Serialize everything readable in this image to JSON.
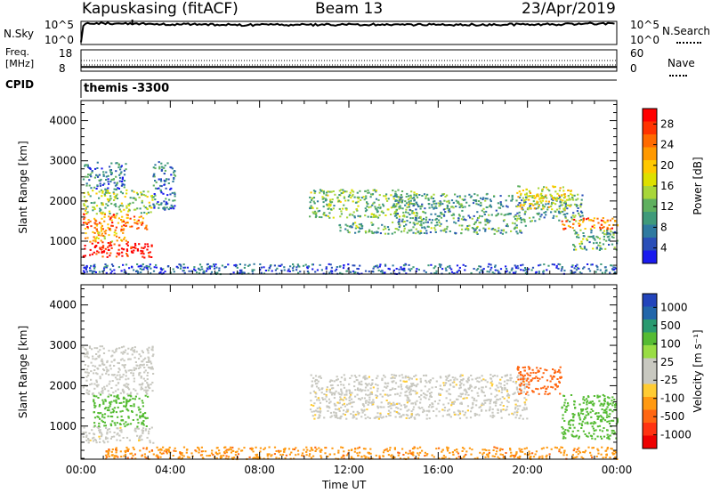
{
  "header": {
    "station": "Kapuskasing (fitACF)",
    "beam": "Beam 13",
    "date": "23/Apr/2019"
  },
  "panels": {
    "noise": {
      "left_label": "N.Sky",
      "right_label": "N.Search",
      "left_ticks": [
        "10^5",
        "10^0"
      ],
      "right_ticks": [
        "10^5",
        "10^0"
      ]
    },
    "freq": {
      "left_label_line1": "Freq.",
      "left_label_line2": "[MHz]",
      "right_label": "Nave",
      "left_ticks": [
        "18",
        "8"
      ],
      "right_ticks": [
        "60",
        "0"
      ]
    },
    "cpid": {
      "label": "CPID",
      "value": "themis -3300"
    }
  },
  "x_axis": {
    "label": "Time UT",
    "ticks": [
      "00:00",
      "04:00",
      "08:00",
      "12:00",
      "16:00",
      "20:00",
      "00:00"
    ],
    "range_hours": [
      0,
      24
    ]
  },
  "colorbars": {
    "power": {
      "label": "Power [dB]",
      "ticks": [
        "28",
        "24",
        "20",
        "16",
        "12",
        "8",
        "4"
      ],
      "colors": [
        "#ff0000",
        "#ff3300",
        "#ff6a00",
        "#ff9900",
        "#ffc800",
        "#dde000",
        "#a8d63a",
        "#5fb05f",
        "#3f9a7a",
        "#2f7aa0",
        "#2a4fb8",
        "#1a1aee"
      ]
    },
    "velocity": {
      "label": "Velocity [m s⁻¹]",
      "ticks": [
        "1000",
        "500",
        "100",
        "25",
        "-25",
        "-100",
        "-500",
        "-1000"
      ],
      "colors": [
        "#2244bb",
        "#2266aa",
        "#2a9a70",
        "#55bb33",
        "#99dd44",
        "#c8c8c0",
        "#c8c8c0",
        "#ffcc33",
        "#ff9911",
        "#ff6611",
        "#ff3311",
        "#ee0000"
      ]
    }
  },
  "chart_data": [
    {
      "type": "line",
      "name": "noise",
      "ylabel": "N.Sky",
      "y_scale": "log",
      "ylim": [
        1,
        100000
      ],
      "x_range": [
        0,
        24
      ],
      "series": [
        {
          "values_t": [
            0,
            0.1,
            0.15,
            1,
            2,
            3,
            4,
            5,
            6,
            7,
            8,
            9,
            10,
            11,
            12,
            13,
            14,
            15,
            16,
            17,
            18,
            19,
            20,
            21,
            22,
            23,
            24
          ],
          "values": [
            3,
            10000,
            30000,
            40000,
            35000,
            30000,
            25000,
            22000,
            20000,
            18000,
            17000,
            17000,
            17000,
            18000,
            20000,
            21000,
            20000,
            19000,
            19000,
            20000,
            20000,
            20000,
            20000,
            22000,
            25000,
            30000,
            40000
          ]
        }
      ]
    },
    {
      "type": "line",
      "name": "frequency",
      "ylabel": "Freq. [MHz]",
      "ylim": [
        8,
        18
      ],
      "series": [
        {
          "values_t": [
            0,
            24
          ],
          "values": [
            10,
            10
          ]
        }
      ]
    },
    {
      "type": "heatmap",
      "name": "power",
      "ylabel": "Slant Range [km]",
      "ylim": [
        180,
        4500
      ],
      "y_ticks": [
        1000,
        2000,
        3000,
        4000
      ],
      "x_range": [
        0,
        24
      ],
      "colorbar_range": [
        3,
        30
      ],
      "bands": [
        {
          "t0": 0.05,
          "t1": 3.2,
          "r0": 600,
          "r1": 1000,
          "v": 29
        },
        {
          "t0": 0.05,
          "t1": 2.0,
          "r0": 1000,
          "r1": 1300,
          "v": 20
        },
        {
          "t0": 0.05,
          "t1": 3.0,
          "r0": 1300,
          "r1": 1700,
          "v": 24
        },
        {
          "t0": 0.05,
          "t1": 3.2,
          "r0": 1700,
          "r1": 2300,
          "v": 15
        },
        {
          "t0": 0.05,
          "t1": 2.0,
          "r0": 2300,
          "r1": 3000,
          "v": 9
        },
        {
          "t0": 3.2,
          "t1": 4.2,
          "r0": 1800,
          "r1": 3000,
          "v": 8
        },
        {
          "t0": 10.2,
          "t1": 15.0,
          "r0": 1600,
          "r1": 2300,
          "v": 14
        },
        {
          "t0": 11.5,
          "t1": 20.0,
          "r0": 1200,
          "r1": 1500,
          "v": 12
        },
        {
          "t0": 14.0,
          "t1": 22.5,
          "r0": 1500,
          "r1": 2200,
          "v": 11
        },
        {
          "t0": 19.5,
          "t1": 22.0,
          "r0": 1800,
          "r1": 2400,
          "v": 18
        },
        {
          "t0": 21.5,
          "t1": 24.0,
          "r0": 1300,
          "r1": 1600,
          "v": 24
        },
        {
          "t0": 22.0,
          "t1": 24.0,
          "r0": 800,
          "r1": 1300,
          "v": 12
        },
        {
          "t0": 0.0,
          "t1": 24.0,
          "r0": 200,
          "r1": 450,
          "v": 7
        }
      ]
    },
    {
      "type": "heatmap",
      "name": "velocity",
      "ylabel": "Slant Range [km]",
      "ylim": [
        180,
        4500
      ],
      "y_ticks": [
        1000,
        2000,
        3000,
        4000
      ],
      "x_range": [
        0,
        24
      ],
      "colorbar_range": [
        -1000,
        1000
      ],
      "bands": [
        {
          "t0": 0.05,
          "t1": 3.2,
          "r0": 600,
          "r1": 1000,
          "v": 0
        },
        {
          "t0": 0.5,
          "t1": 3.0,
          "r0": 1000,
          "r1": 1800,
          "v": 150
        },
        {
          "t0": 0.05,
          "t1": 3.2,
          "r0": 1800,
          "r1": 3000,
          "v": 10
        },
        {
          "t0": 10.2,
          "t1": 20.0,
          "r0": 1200,
          "r1": 2300,
          "v": 0
        },
        {
          "t0": 19.5,
          "t1": 21.5,
          "r0": 1800,
          "r1": 2500,
          "v": -150
        },
        {
          "t0": 21.5,
          "t1": 24.0,
          "r0": 700,
          "r1": 1800,
          "v": 200
        },
        {
          "t0": 1.0,
          "t1": 24.0,
          "r0": 200,
          "r1": 500,
          "v": -80
        }
      ]
    }
  ]
}
